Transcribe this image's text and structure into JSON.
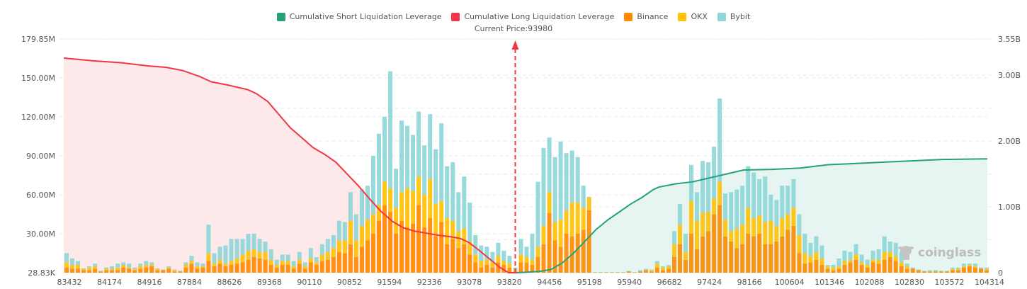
{
  "chart_data": {
    "type": "bar",
    "title": "",
    "current_price_label": "Current Price:93980",
    "current_price": 93980,
    "legend": [
      {
        "name": "Cumulative Short Liquidation Leverage",
        "color": "#26a17b"
      },
      {
        "name": "Cumulative Long Liquidation Leverage",
        "color": "#f23645"
      },
      {
        "name": "Binance",
        "color": "#ff8a00"
      },
      {
        "name": "OKX",
        "color": "#ffc107"
      },
      {
        "name": "Bybit",
        "color": "#8fd6d9"
      }
    ],
    "legend_position": "top-center",
    "left_axis": {
      "ticks": [
        "28.83K",
        "30.00M",
        "60.00M",
        "90.00M",
        "120.00M",
        "150.00M",
        "179.85M"
      ],
      "tick_values": [
        0.02883,
        30,
        60,
        90,
        120,
        150,
        179.85
      ],
      "range": [
        0.02883,
        179.85
      ],
      "unit": "M"
    },
    "right_axis": {
      "ticks": [
        "0",
        "1.00B",
        "2.00B",
        "3.00B",
        "3.55B"
      ],
      "tick_values": [
        0,
        1.0,
        2.0,
        3.0,
        3.55
      ],
      "range": [
        0,
        3.55
      ],
      "unit": "B"
    },
    "x_tick_labels": [
      "83432",
      "84174",
      "84916",
      "87884",
      "88626",
      "89368",
      "90110",
      "90852",
      "91594",
      "92336",
      "93078",
      "93820",
      "94456",
      "95198",
      "95940",
      "96682",
      "97424",
      "98166",
      "100604",
      "101346",
      "102088",
      "102830",
      "103572",
      "104314"
    ],
    "bar_count": 163,
    "current_price_index": 79.5,
    "series": [
      {
        "name": "Binance",
        "values": [
          4,
          3,
          3,
          2,
          2,
          3,
          1,
          2,
          2,
          2,
          4,
          3,
          2,
          3,
          4,
          5,
          2,
          2,
          3,
          1,
          1,
          4,
          7,
          3,
          4,
          9,
          5,
          7,
          5,
          6,
          7,
          8,
          10,
          12,
          11,
          10,
          6,
          4,
          6,
          6,
          3,
          7,
          3,
          8,
          6,
          9,
          10,
          12,
          16,
          15,
          22,
          12,
          20,
          25,
          30,
          40,
          52,
          47,
          30,
          40,
          35,
          38,
          52,
          35,
          42,
          28,
          39,
          22,
          26,
          19,
          22,
          14,
          8,
          4,
          6,
          4,
          8,
          6,
          4,
          1,
          8,
          8,
          6,
          12,
          22,
          46,
          25,
          20,
          30,
          28,
          30,
          33,
          48,
          0,
          0,
          0,
          0,
          0,
          0,
          1,
          0,
          1,
          2,
          1,
          4,
          2,
          3,
          12,
          22,
          10,
          30,
          18,
          28,
          32,
          45,
          52,
          28,
          24,
          19,
          22,
          30,
          28,
          30,
          22,
          22,
          24,
          28,
          33,
          36,
          15,
          7,
          8,
          10,
          6,
          3,
          2,
          3,
          6,
          8,
          10,
          6,
          4,
          8,
          7,
          10,
          12,
          9,
          5,
          3,
          3,
          2,
          1,
          1,
          1,
          1,
          1,
          2,
          2,
          4,
          5,
          4,
          3,
          2
        ],
        "unit": "M"
      },
      {
        "name": "OKX",
        "values": [
          4,
          3,
          3,
          1,
          2,
          2,
          0,
          1,
          1,
          2,
          2,
          1,
          1,
          2,
          2,
          1,
          1,
          0,
          1,
          1,
          0,
          2,
          2,
          2,
          1,
          6,
          2,
          3,
          2,
          3,
          4,
          6,
          7,
          6,
          5,
          6,
          4,
          2,
          3,
          3,
          2,
          3,
          2,
          3,
          2,
          5,
          6,
          7,
          9,
          10,
          18,
          13,
          16,
          16,
          15,
          12,
          18,
          18,
          20,
          22,
          30,
          25,
          22,
          25,
          30,
          25,
          16,
          20,
          14,
          13,
          12,
          10,
          6,
          5,
          4,
          4,
          5,
          3,
          3,
          1,
          6,
          4,
          4,
          8,
          14,
          16,
          14,
          21,
          18,
          26,
          24,
          17,
          10,
          0,
          0,
          0,
          0,
          0,
          0,
          0,
          0,
          0,
          0,
          1,
          3,
          2,
          2,
          10,
          15,
          6,
          25,
          22,
          18,
          15,
          12,
          18,
          13,
          8,
          15,
          15,
          20,
          14,
          14,
          17,
          18,
          12,
          14,
          12,
          14,
          14,
          8,
          5,
          6,
          5,
          2,
          2,
          2,
          3,
          2,
          4,
          2,
          2,
          2,
          3,
          6,
          4,
          4,
          3,
          2,
          0,
          0,
          0,
          0,
          0,
          0,
          0,
          1,
          1,
          1,
          1,
          1,
          0,
          1
        ],
        "unit": "M"
      },
      {
        "name": "Bybit",
        "values": [
          7,
          5,
          3,
          0,
          1,
          2,
          0,
          1,
          2,
          3,
          2,
          3,
          1,
          2,
          3,
          2,
          0,
          0,
          1,
          0,
          0,
          2,
          4,
          3,
          2,
          22,
          8,
          10,
          14,
          17,
          15,
          12,
          13,
          12,
          10,
          8,
          8,
          4,
          5,
          5,
          4,
          6,
          3,
          8,
          4,
          8,
          10,
          10,
          15,
          14,
          22,
          20,
          28,
          26,
          45,
          55,
          50,
          90,
          30,
          55,
          48,
          43,
          50,
          38,
          50,
          42,
          60,
          40,
          45,
          30,
          40,
          30,
          15,
          12,
          10,
          8,
          10,
          8,
          6,
          2,
          12,
          8,
          20,
          50,
          60,
          42,
          50,
          60,
          44,
          40,
          35,
          17,
          0,
          0,
          0,
          0,
          0,
          0,
          0,
          0,
          0,
          1,
          1,
          0,
          2,
          1,
          1,
          10,
          16,
          14,
          28,
          22,
          40,
          38,
          40,
          64,
          20,
          30,
          30,
          30,
          32,
          35,
          28,
          35,
          20,
          20,
          25,
          22,
          22,
          16,
          15,
          10,
          12,
          10,
          1,
          2,
          6,
          8,
          6,
          8,
          6,
          4,
          7,
          8,
          12,
          8,
          10,
          8,
          2,
          1,
          0,
          0,
          1,
          1,
          0,
          0,
          1,
          1,
          2,
          1,
          2,
          1,
          1
        ],
        "unit": "M"
      },
      {
        "name": "Cumulative Long Liquidation Leverage",
        "axis": "right",
        "unit": "B",
        "points": [
          [
            0,
            3.26
          ],
          [
            10,
            3.22
          ],
          [
            20,
            3.19
          ],
          [
            30,
            3.14
          ],
          [
            36,
            3.12
          ],
          [
            42,
            3.07
          ],
          [
            48,
            2.98
          ],
          [
            52,
            2.9
          ],
          [
            58,
            2.85
          ],
          [
            62,
            2.81
          ],
          [
            65,
            2.78
          ],
          [
            68,
            2.72
          ],
          [
            72,
            2.6
          ],
          [
            76,
            2.4
          ],
          [
            80,
            2.2
          ],
          [
            84,
            2.05
          ],
          [
            88,
            1.9
          ],
          [
            92,
            1.8
          ],
          [
            96,
            1.68
          ],
          [
            100,
            1.5
          ],
          [
            104,
            1.32
          ],
          [
            108,
            1.12
          ],
          [
            112,
            0.93
          ],
          [
            116,
            0.78
          ],
          [
            120,
            0.68
          ],
          [
            124,
            0.63
          ],
          [
            128,
            0.6
          ],
          [
            132,
            0.57
          ],
          [
            136,
            0.55
          ],
          [
            140,
            0.52
          ],
          [
            143,
            0.46
          ],
          [
            146,
            0.36
          ],
          [
            150,
            0.22
          ],
          [
            154,
            0.08
          ],
          [
            157,
            0.0
          ],
          [
            160,
            0.0
          ]
        ],
        "x_scale": "pixels-from-plot-left-div4"
      },
      {
        "name": "Cumulative Short Liquidation Leverage",
        "axis": "right",
        "unit": "B",
        "points": [
          [
            160,
            0.0
          ],
          [
            168,
            0.02
          ],
          [
            172,
            0.05
          ],
          [
            176,
            0.15
          ],
          [
            180,
            0.3
          ],
          [
            184,
            0.48
          ],
          [
            188,
            0.66
          ],
          [
            192,
            0.8
          ],
          [
            196,
            0.92
          ],
          [
            200,
            1.04
          ],
          [
            204,
            1.14
          ],
          [
            208,
            1.26
          ],
          [
            210,
            1.3
          ],
          [
            216,
            1.35
          ],
          [
            222,
            1.38
          ],
          [
            228,
            1.44
          ],
          [
            232,
            1.48
          ],
          [
            240,
            1.56
          ],
          [
            250,
            1.57
          ],
          [
            260,
            1.59
          ],
          [
            270,
            1.64
          ],
          [
            280,
            1.66
          ],
          [
            290,
            1.68
          ],
          [
            300,
            1.7
          ],
          [
            310,
            1.72
          ],
          [
            326,
            1.73
          ]
        ],
        "x_scale": "pixels-from-plot-left-div4"
      }
    ]
  },
  "watermark": "coinglass"
}
